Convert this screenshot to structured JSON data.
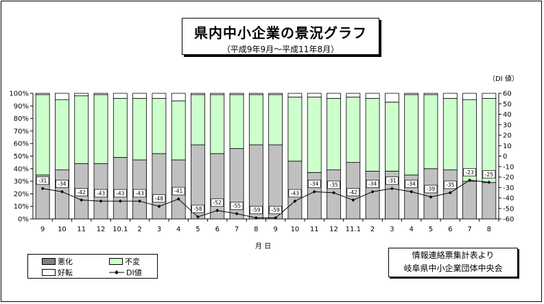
{
  "header": {
    "title": "県内中小企業の景況グラフ",
    "subtitle": "（平成9年9月〜平成11年8月）"
  },
  "source": {
    "line1": "情報連絡票集計表より",
    "line2": "岐阜県中小企業団体中央会"
  },
  "colors": {
    "worse": "#c0c0c0",
    "same": "#ccffcc",
    "better": "#ffffff",
    "di_line": "#000000"
  },
  "chart_data": {
    "type": "bar",
    "stacked": true,
    "xlabel": "月 日",
    "left_axis": {
      "ticks": [
        "0%",
        "10%",
        "20%",
        "30%",
        "40%",
        "50%",
        "60%",
        "70%",
        "80%",
        "90%",
        "100%"
      ],
      "range": [
        0,
        100
      ]
    },
    "right_axis": {
      "label": "（DI 値）",
      "ticks": [
        "-60",
        "-50",
        "-40",
        "-30",
        "-20",
        "-10",
        "0",
        "10",
        "20",
        "30",
        "40",
        "50",
        "60"
      ],
      "range": [
        -60,
        60
      ]
    },
    "categories": [
      "9",
      "10",
      "11",
      "12",
      "10.1",
      "2",
      "3",
      "4",
      "5",
      "6",
      "7",
      "8",
      "9",
      "10",
      "11",
      "12",
      "11.1",
      "2",
      "3",
      "4",
      "5",
      "6",
      "7",
      "8"
    ],
    "series": [
      {
        "name": "悪化",
        "axis": "left",
        "values": [
          35,
          39,
          44,
          44,
          49,
          47,
          52,
          47,
          59,
          52,
          56,
          59,
          59,
          46,
          37,
          39,
          45,
          38,
          38,
          35,
          40,
          39,
          30,
          29
        ]
      },
      {
        "name": "不変",
        "axis": "left",
        "values": [
          64,
          56,
          54,
          55,
          47,
          49,
          44,
          47,
          40,
          47,
          43,
          40,
          40,
          51,
          60,
          57,
          52,
          58,
          55,
          64,
          59,
          57,
          65,
          67
        ]
      },
      {
        "name": "好転",
        "axis": "left",
        "values": [
          1,
          5,
          2,
          1,
          4,
          4,
          4,
          6,
          1,
          1,
          1,
          1,
          1,
          3,
          3,
          4,
          3,
          4,
          7,
          1,
          1,
          4,
          5,
          4
        ]
      },
      {
        "name": "DI値",
        "axis": "right",
        "type": "line",
        "values": [
          -31,
          -34,
          -42,
          -43,
          -43,
          -43,
          -48,
          -41,
          -58,
          -52,
          -55,
          -59,
          -59,
          -43,
          -34,
          -35,
          -42,
          -34,
          -31,
          -34,
          -39,
          -35,
          -23,
          -25
        ]
      }
    ],
    "legend": {
      "position": "bottom-left",
      "entries": [
        "悪化",
        "不変",
        "好転",
        "DI値"
      ]
    },
    "grid": false
  }
}
